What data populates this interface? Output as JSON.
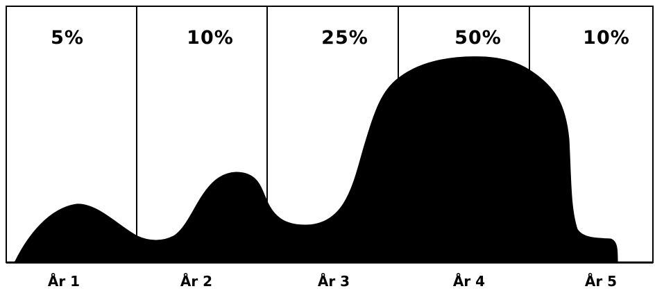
{
  "chart_data": {
    "type": "area",
    "categories": [
      "År 1",
      "År 2",
      "År 3",
      "År 4",
      "År 5"
    ],
    "values": [
      "5%",
      "10%",
      "25%",
      "50%",
      "10%"
    ],
    "title": "",
    "xlabel": "",
    "ylabel": "",
    "colors": {
      "fill": "#000000",
      "border": "#000000",
      "background": "#ffffff"
    }
  }
}
